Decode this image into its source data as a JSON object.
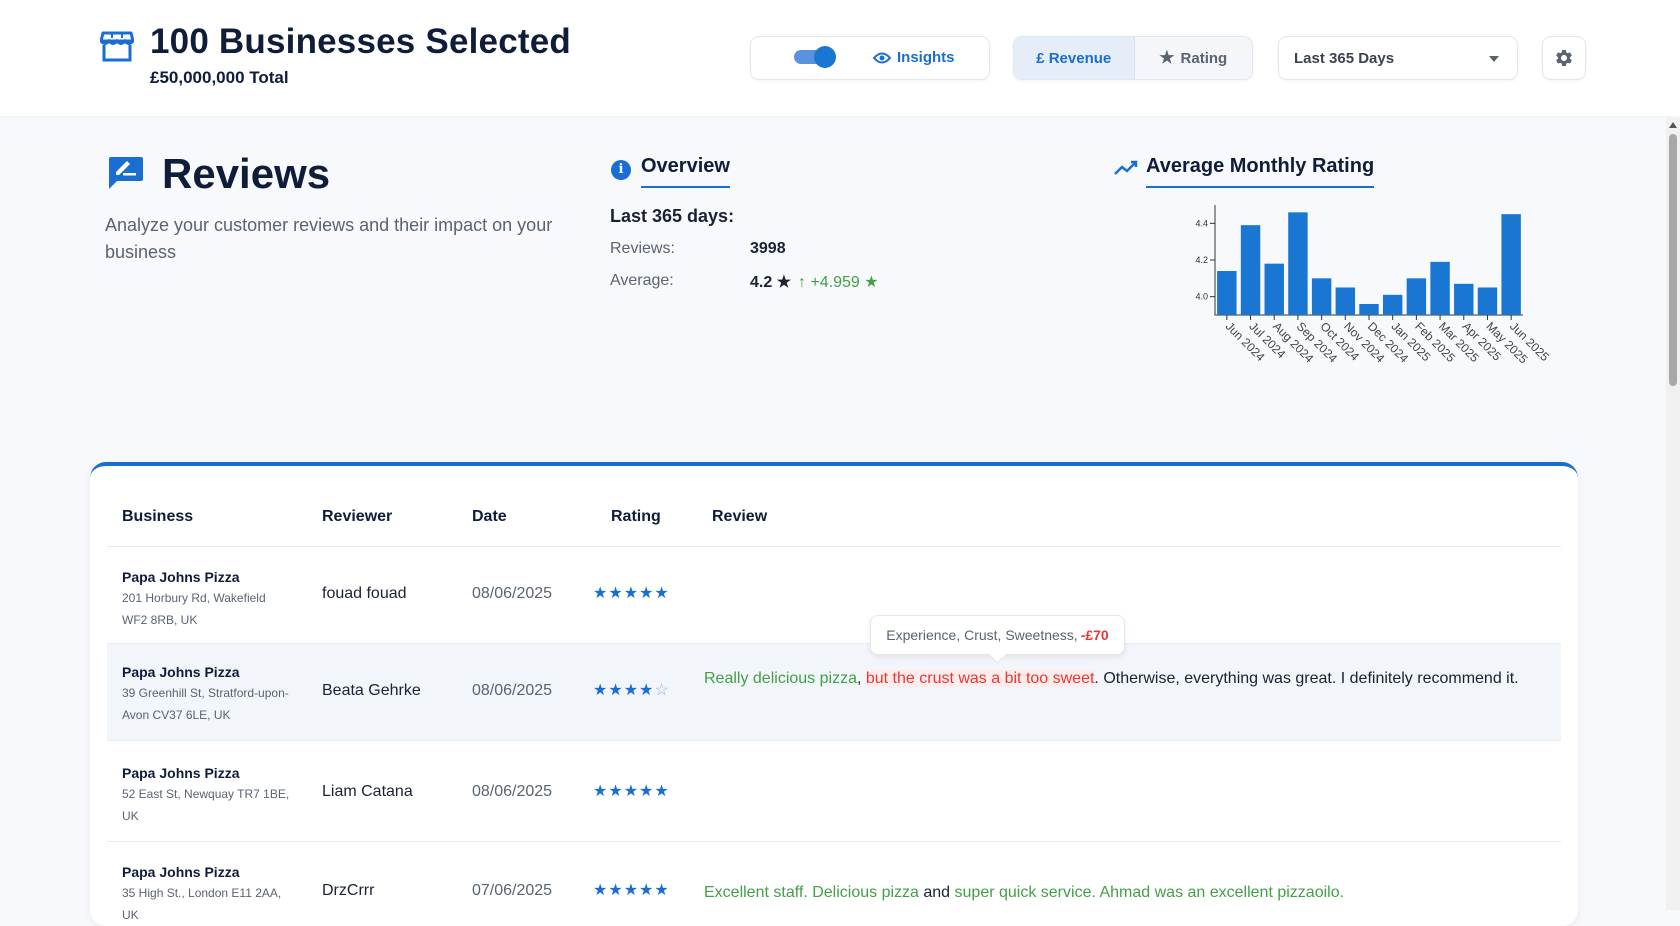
{
  "header": {
    "title": "100 Businesses Selected",
    "subtitle": "£50,000,000 Total",
    "insights_label": "Insights",
    "metric_revenue": "£ Revenue",
    "metric_rating": "Rating",
    "metric_selected": "£ Revenue",
    "period": "Last 365 Days",
    "insights_toggle_on": true
  },
  "reviews": {
    "title": "Reviews",
    "description": "Analyze your customer reviews and their impact on your business"
  },
  "overview": {
    "title": "Overview",
    "period": "Last 365 days:",
    "reviews_label": "Reviews:",
    "reviews_value": "3998",
    "average_label": "Average:",
    "average_value": "4.2 ★",
    "average_trend": "↑ +4.959 ★"
  },
  "chart": {
    "title": "Average Monthly Rating"
  },
  "chart_data": {
    "type": "bar",
    "categories": [
      "Jun 2024",
      "Jul 2024",
      "Aug 2024",
      "Sep 2024",
      "Oct 2024",
      "Nov 2024",
      "Dec 2024",
      "Jan 2025",
      "Feb 2025",
      "Mar 2025",
      "Apr 2025",
      "May 2025",
      "Jun 2025"
    ],
    "values": [
      4.14,
      4.39,
      4.18,
      4.46,
      4.1,
      4.05,
      3.96,
      4.01,
      4.1,
      4.19,
      4.07,
      4.05,
      4.45
    ],
    "ylim": [
      3.9,
      4.5
    ],
    "yticks": [
      "4.0",
      "4.2",
      "4.4"
    ],
    "color": "#1976d2",
    "title": "",
    "xlabel": "",
    "ylabel": ""
  },
  "table": {
    "headers": [
      "Business",
      "Reviewer",
      "Date",
      "Rating",
      "Review"
    ],
    "rows": [
      {
        "business": "Papa Johns Pizza",
        "address": "201 Horbury Rd, Wakefield WF2 8RB, UK",
        "reviewer": "fouad fouad",
        "date": "08/06/2025",
        "rating": 5,
        "review": []
      },
      {
        "business": "Papa Johns Pizza",
        "address": "39 Greenhill St, Stratford-upon-Avon CV37 6LE, UK",
        "reviewer": "Beata Gehrke",
        "date": "08/06/2025",
        "rating": 4,
        "review": [
          {
            "text": "Really delicious pizza",
            "sentiment": "positive"
          },
          {
            "text": ", ",
            "sentiment": "neutral"
          },
          {
            "text": "but the crust was a bit too sweet",
            "sentiment": "negative"
          },
          {
            "text": ". Otherwise, everything was great. I definitely recommend it.",
            "sentiment": "neutral"
          }
        ]
      },
      {
        "business": "Papa Johns Pizza",
        "address": "52 East St, Newquay TR7 1BE, UK",
        "reviewer": "Liam Catana",
        "date": "08/06/2025",
        "rating": 5,
        "review": []
      },
      {
        "business": "Papa Johns Pizza",
        "address": "35 High St., London E11 2AA, UK",
        "reviewer": "DrzCrrr",
        "date": "07/06/2025",
        "rating": 5,
        "review": [
          {
            "text": "Excellent staff. Delicious pizza",
            "sentiment": "positive"
          },
          {
            "text": " and ",
            "sentiment": "neutral"
          },
          {
            "text": "super quick service. Ahmad was an excellent pizzaoilo.",
            "sentiment": "positive"
          }
        ]
      }
    ]
  },
  "tooltip": {
    "text": "Experience, Crust, Sweetness,",
    "value": "-£70"
  }
}
